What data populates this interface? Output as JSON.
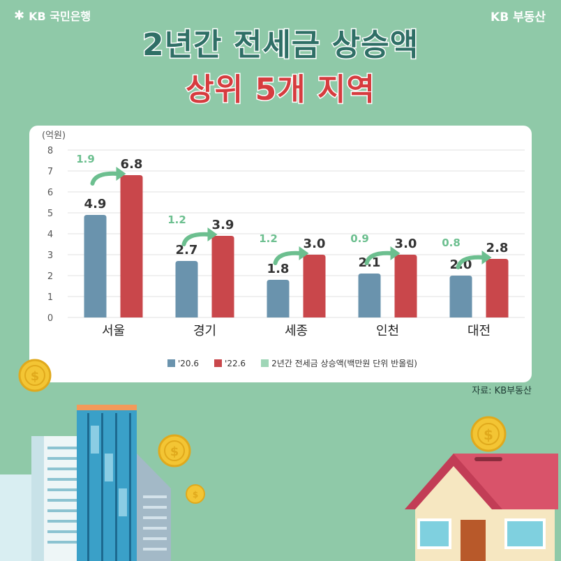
{
  "header": {
    "brand_left": "KB 국민은행",
    "brand_right": "KB 부동산",
    "title_line1": "2년간 전세금 상승액",
    "title_line2": "상위 5개 지역"
  },
  "source": "자료: KB부동산",
  "colors": {
    "series_2020": "#6a93ad",
    "series_2022": "#c9474b",
    "increase": "#6cbf8f",
    "background": "#8fc9a8",
    "title_dark": "#2f6f66",
    "title_red": "#d63c3f"
  },
  "legend": {
    "s1": "'20.6",
    "s2": "'22.6",
    "s3": "2년간 전세금 상승액(백만원 단위 반올림)"
  },
  "chart_data": {
    "type": "bar",
    "unit_label": "(억원)",
    "categories": [
      "서울",
      "경기",
      "세종",
      "인천",
      "대전"
    ],
    "series": [
      {
        "name": "'20.6",
        "values": [
          4.9,
          2.7,
          1.8,
          2.1,
          2.0
        ]
      },
      {
        "name": "'22.6",
        "values": [
          6.8,
          3.9,
          3.0,
          3.0,
          2.8
        ]
      }
    ],
    "increase": [
      1.9,
      1.2,
      1.2,
      0.9,
      0.8
    ],
    "value_labels_2020": [
      "4.9",
      "2.7",
      "1.8",
      "2.1",
      "2.0"
    ],
    "value_labels_2022": [
      "6.8",
      "3.9",
      "3.0",
      "3.0",
      "2.8"
    ],
    "increase_labels": [
      "1.9",
      "1.2",
      "1.2",
      "0.9",
      "0.8"
    ],
    "yticks": [
      "0",
      "1",
      "2",
      "3",
      "4",
      "5",
      "6",
      "7",
      "8"
    ],
    "ylim": [
      0,
      8
    ],
    "grid": true,
    "legend_position": "bottom"
  }
}
